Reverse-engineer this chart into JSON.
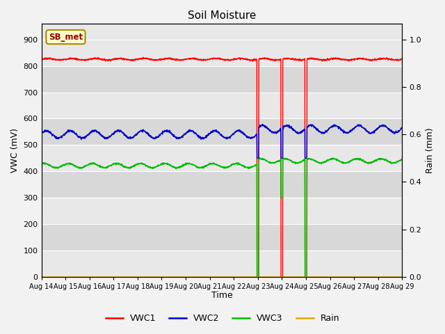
{
  "title": "Soil Moisture",
  "xlabel": "Time",
  "ylabel_left": "VWC (mV)",
  "ylabel_right": "Rain (mm)",
  "xlim": [
    0,
    15
  ],
  "ylim_left": [
    0,
    960
  ],
  "ylim_right": [
    0,
    1.0667
  ],
  "x_tick_labels": [
    "Aug 14",
    "Aug 15",
    "Aug 16",
    "Aug 17",
    "Aug 18",
    "Aug 19",
    "Aug 20",
    "Aug 21",
    "Aug 22",
    "Aug 23",
    "Aug 24",
    "Aug 25",
    "Aug 26",
    "Aug 27",
    "Aug 28",
    "Aug 29"
  ],
  "yticks_left": [
    0,
    100,
    200,
    300,
    400,
    500,
    600,
    700,
    800,
    900
  ],
  "yticks_right": [
    0.0,
    0.2,
    0.4,
    0.6,
    0.8,
    1.0
  ],
  "legend_labels": [
    "VWC1",
    "VWC2",
    "VWC3",
    "Rain"
  ],
  "legend_colors": [
    "#ff0000",
    "#0000cc",
    "#00bb00",
    "#ddaa00"
  ],
  "annotation_label": "SB_met",
  "vwc1_base": 825,
  "vwc2_base": 540,
  "vwc2_amplitude": 14,
  "vwc3_base": 422,
  "vwc3_amplitude": 8,
  "spike_days": [
    9.0,
    10.0,
    11.0
  ],
  "bg_light": "#e8e8e8",
  "bg_dark": "#d8d8d8",
  "grid_color": "#ffffff",
  "fig_bg": "#f2f2f2"
}
